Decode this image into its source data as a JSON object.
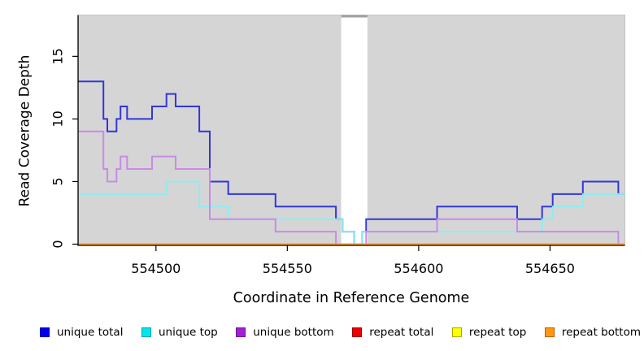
{
  "chart_data": {
    "type": "line",
    "subtype": "step",
    "title": "",
    "xlabel": "Coordinate in Reference Genome",
    "ylabel": "Read Coverage Depth",
    "xlim": [
      554470.5,
      554678.5
    ],
    "ylim": [
      0,
      18.3
    ],
    "x_ticks": [
      554500,
      554550,
      554600,
      554650
    ],
    "y_ticks": [
      0,
      5,
      10,
      15
    ],
    "grid": "off",
    "legend_position": "bottom",
    "plot_bg": "#d5d5d5",
    "plot_border": "#c3c3c3",
    "axis_color": "#000000",
    "masked_region": {
      "start": 554570.5,
      "end": 554580.5,
      "color": "#ffffff",
      "cap_color": "#a0a0a0"
    },
    "series": [
      {
        "name": "unique total",
        "line_color": "#3336d8",
        "legend_fill": "#0000f0",
        "legend_border": "#0000a8",
        "steps": [
          [
            554470.5,
            13
          ],
          [
            554480,
            10
          ],
          [
            554481.5,
            9
          ],
          [
            554485,
            10
          ],
          [
            554486.5,
            11
          ],
          [
            554489,
            10
          ],
          [
            554498.5,
            11
          ],
          [
            554504,
            12
          ],
          [
            554507.5,
            11
          ],
          [
            554516.5,
            9
          ],
          [
            554520.5,
            5
          ],
          [
            554527.5,
            4
          ],
          [
            554545.5,
            3
          ],
          [
            554568.5,
            2
          ],
          [
            554571,
            1
          ],
          [
            554575.5,
            0
          ],
          [
            554578.5,
            1
          ],
          [
            554580,
            2
          ],
          [
            554607,
            3
          ],
          [
            554637.5,
            2
          ],
          [
            554647,
            3
          ],
          [
            554651,
            4
          ],
          [
            554662.5,
            5
          ],
          [
            554676,
            4
          ]
        ]
      },
      {
        "name": "unique top",
        "line_color": "#8dedf2",
        "legend_fill": "#00e6ee",
        "legend_border": "#00a0aa",
        "steps": [
          [
            554470.5,
            4
          ],
          [
            554504,
            5
          ],
          [
            554516.5,
            3
          ],
          [
            554527.5,
            2
          ],
          [
            554571,
            1
          ],
          [
            554575.5,
            0
          ],
          [
            554578.5,
            1
          ],
          [
            554647,
            2
          ],
          [
            554651,
            3
          ],
          [
            554662.5,
            4
          ]
        ]
      },
      {
        "name": "unique bottom",
        "line_color": "#c98ae8",
        "legend_fill": "#a21fd6",
        "legend_border": "#6d1596",
        "steps": [
          [
            554470.5,
            9
          ],
          [
            554480,
            6
          ],
          [
            554481.5,
            5
          ],
          [
            554485,
            6
          ],
          [
            554486.5,
            7
          ],
          [
            554489,
            6
          ],
          [
            554498.5,
            7
          ],
          [
            554507.5,
            6
          ],
          [
            554520.5,
            2
          ],
          [
            554545.5,
            1
          ],
          [
            554568.5,
            0
          ],
          [
            554580,
            1
          ],
          [
            554607,
            2
          ],
          [
            554637.5,
            1
          ],
          [
            554676,
            0
          ]
        ]
      },
      {
        "name": "repeat total",
        "line_color": "#ee1111",
        "legend_fill": "#ee0000",
        "legend_border": "#990000",
        "steps": [
          [
            554470.5,
            0
          ]
        ]
      },
      {
        "name": "repeat top",
        "line_color": "#ffff33",
        "legend_fill": "#ffff00",
        "legend_border": "#a8a800",
        "steps": [
          [
            554470.5,
            0
          ]
        ]
      },
      {
        "name": "repeat bottom",
        "line_color": "#ff9d26",
        "legend_fill": "#ff9810",
        "legend_border": "#b36000",
        "steps": [
          [
            554470.5,
            0
          ]
        ]
      }
    ]
  }
}
